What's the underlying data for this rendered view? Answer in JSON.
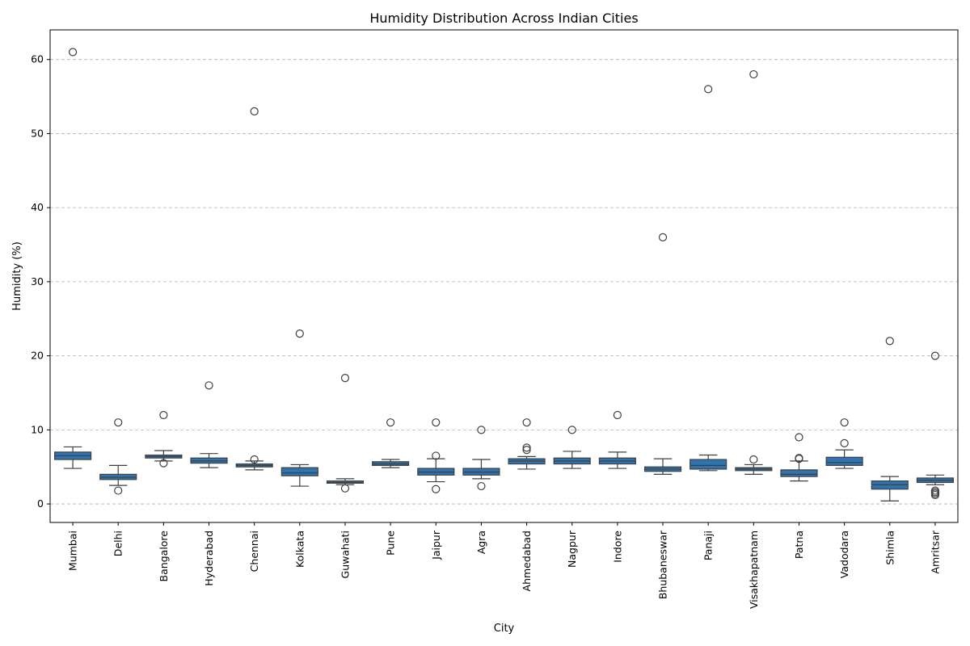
{
  "chart_data": {
    "type": "box",
    "title": "Humidity Distribution Across Indian Cities",
    "xlabel": "City",
    "ylabel": "Humidity (%)",
    "ylim": [
      -2.5,
      64
    ],
    "yticks": [
      0,
      10,
      20,
      30,
      40,
      50,
      60
    ],
    "grid": "y-dashed",
    "box_color": "#2e74b0",
    "edge_color": "#3f3f3f",
    "series": [
      {
        "category": "Mumbai",
        "whisker_low": 4.8,
        "q1": 6.0,
        "median": 6.5,
        "q3": 7.0,
        "whisker_high": 7.7,
        "outliers": [
          61
        ]
      },
      {
        "category": "Delhi",
        "whisker_low": 2.5,
        "q1": 3.3,
        "median": 3.6,
        "q3": 4.0,
        "whisker_high": 5.2,
        "outliers": [
          11,
          1.8
        ]
      },
      {
        "category": "Bangalore",
        "whisker_low": 5.8,
        "q1": 6.2,
        "median": 6.4,
        "q3": 6.6,
        "whisker_high": 7.2,
        "outliers": [
          12,
          5.5
        ]
      },
      {
        "category": "Hyderabad",
        "whisker_low": 4.9,
        "q1": 5.5,
        "median": 5.8,
        "q3": 6.2,
        "whisker_high": 6.8,
        "outliers": [
          16
        ]
      },
      {
        "category": "Chennai",
        "whisker_low": 4.6,
        "q1": 5.0,
        "median": 5.2,
        "q3": 5.4,
        "whisker_high": 5.8,
        "outliers": [
          53,
          6.0
        ]
      },
      {
        "category": "Kolkata",
        "whisker_low": 2.4,
        "q1": 3.8,
        "median": 4.2,
        "q3": 4.9,
        "whisker_high": 5.3,
        "outliers": [
          23
        ]
      },
      {
        "category": "Guwahati",
        "whisker_low": 2.6,
        "q1": 2.8,
        "median": 2.9,
        "q3": 3.1,
        "whisker_high": 3.4,
        "outliers": [
          17,
          2.1
        ]
      },
      {
        "category": "Pune",
        "whisker_low": 4.9,
        "q1": 5.2,
        "median": 5.4,
        "q3": 5.7,
        "whisker_high": 6.0,
        "outliers": [
          11
        ]
      },
      {
        "category": "Jaipur",
        "whisker_low": 3.0,
        "q1": 3.9,
        "median": 4.3,
        "q3": 4.8,
        "whisker_high": 6.1,
        "outliers": [
          11,
          6.5,
          2.0
        ]
      },
      {
        "category": "Agra",
        "whisker_low": 3.4,
        "q1": 3.9,
        "median": 4.3,
        "q3": 4.8,
        "whisker_high": 6.0,
        "outliers": [
          10,
          2.4
        ]
      },
      {
        "category": "Ahmedabad",
        "whisker_low": 4.7,
        "q1": 5.4,
        "median": 5.8,
        "q3": 6.1,
        "whisker_high": 6.4,
        "outliers": [
          11,
          7.6,
          7.3
        ]
      },
      {
        "category": "Nagpur",
        "whisker_low": 4.8,
        "q1": 5.4,
        "median": 5.8,
        "q3": 6.2,
        "whisker_high": 7.1,
        "outliers": [
          10
        ]
      },
      {
        "category": "Indore",
        "whisker_low": 4.8,
        "q1": 5.4,
        "median": 5.8,
        "q3": 6.2,
        "whisker_high": 7.0,
        "outliers": [
          12
        ]
      },
      {
        "category": "Bhubaneswar",
        "whisker_low": 4.0,
        "q1": 4.4,
        "median": 4.7,
        "q3": 5.0,
        "whisker_high": 6.1,
        "outliers": [
          36
        ]
      },
      {
        "category": "Panaji",
        "whisker_low": 4.5,
        "q1": 4.7,
        "median": 5.2,
        "q3": 6.0,
        "whisker_high": 6.6,
        "outliers": [
          56
        ]
      },
      {
        "category": "Visakhapatnam",
        "whisker_low": 4.0,
        "q1": 4.5,
        "median": 4.7,
        "q3": 4.9,
        "whisker_high": 5.3,
        "outliers": [
          58,
          6.0
        ]
      },
      {
        "category": "Patna",
        "whisker_low": 3.1,
        "q1": 3.7,
        "median": 4.0,
        "q3": 4.6,
        "whisker_high": 5.8,
        "outliers": [
          9,
          6.2,
          6.1
        ]
      },
      {
        "category": "Vadodara",
        "whisker_low": 4.8,
        "q1": 5.2,
        "median": 5.6,
        "q3": 6.3,
        "whisker_high": 7.3,
        "outliers": [
          11,
          8.2
        ]
      },
      {
        "category": "Shimla",
        "whisker_low": 0.4,
        "q1": 2.0,
        "median": 2.6,
        "q3": 3.1,
        "whisker_high": 3.7,
        "outliers": [
          22
        ]
      },
      {
        "category": "Amritsar",
        "whisker_low": 2.6,
        "q1": 2.9,
        "median": 3.2,
        "q3": 3.5,
        "whisker_high": 3.9,
        "outliers": [
          20,
          1.8,
          1.6,
          1.4,
          1.2
        ]
      }
    ]
  }
}
